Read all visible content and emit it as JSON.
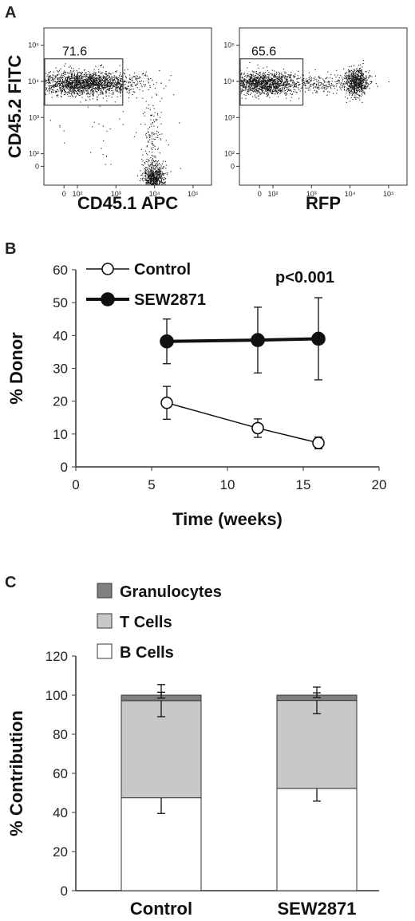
{
  "chart_data": [
    {
      "panel": "A",
      "type": "scatter",
      "plots": [
        {
          "xlabel": "CD45.1 APC",
          "ylabel": "CD45.2 FITC",
          "gate_value": "71.6",
          "x_ticks": [
            "0",
            "10²",
            "10³",
            "10⁴",
            "10⁵"
          ],
          "y_ticks": [
            "0",
            "10²",
            "10³",
            "10⁴",
            "10⁵"
          ],
          "populations": [
            {
              "x_center": 100,
              "y_center": 10000,
              "note": "donor CD45.2+ cluster (gated)"
            },
            {
              "x_center": 10000,
              "y_center": 0,
              "note": "CD45.1+ cluster"
            }
          ]
        },
        {
          "xlabel": "RFP",
          "ylabel": "",
          "gate_value": "65.6",
          "x_ticks": [
            "0",
            "10²",
            "10³",
            "10⁴",
            "10⁵"
          ],
          "y_ticks": [
            "0",
            "10²",
            "10³",
            "10⁴",
            "10⁵"
          ],
          "populations": [
            {
              "x_center": 30,
              "y_center": 10000,
              "note": "RFP- cluster (gated)"
            },
            {
              "x_center": 12000,
              "y_center": 10000,
              "note": "RFP+ cluster"
            }
          ]
        }
      ]
    },
    {
      "panel": "B",
      "type": "line",
      "xlabel": "Time (weeks)",
      "ylabel": "% Donor",
      "xlim": [
        0,
        20
      ],
      "ylim": [
        0,
        60
      ],
      "x_ticks": [
        0,
        5,
        10,
        15,
        20
      ],
      "y_ticks": [
        0,
        10,
        20,
        30,
        40,
        50,
        60
      ],
      "annotation": "p<0.001",
      "series": [
        {
          "name": "Control",
          "marker": "open-circle",
          "x": [
            6,
            12,
            16
          ],
          "y": [
            19.5,
            11.8,
            7.3
          ],
          "error": [
            5,
            2.8,
            1.8
          ]
        },
        {
          "name": "SEW2871",
          "marker": "filled-circle",
          "x": [
            6,
            12,
            16
          ],
          "y": [
            38.2,
            38.6,
            39.0
          ],
          "error": [
            6.8,
            10,
            12.5
          ]
        }
      ]
    },
    {
      "panel": "C",
      "type": "bar",
      "stacked": true,
      "ylabel": "% Contribution",
      "ylim": [
        0,
        120
      ],
      "y_ticks": [
        0,
        20,
        40,
        60,
        80,
        100,
        120
      ],
      "categories": [
        "Control",
        "SEW2871"
      ],
      "series": [
        {
          "name": "B Cells",
          "color": "#ffffff",
          "values": [
            47.5,
            52.3
          ],
          "error": [
            8,
            6.5
          ]
        },
        {
          "name": "T Cells",
          "color": "#c8c8c8",
          "values": [
            49.7,
            45.0
          ],
          "error": [
            8.2,
            6.8
          ]
        },
        {
          "name": "Granulocytes",
          "color": "#808080",
          "values": [
            2.8,
            2.7
          ],
          "error": [
            1.5,
            1.2
          ]
        }
      ],
      "legend_order": [
        "Granulocytes",
        "T Cells",
        "B Cells"
      ]
    }
  ]
}
